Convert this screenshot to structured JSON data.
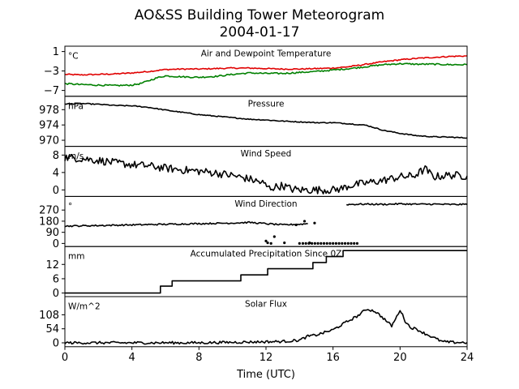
{
  "title": "AO&SS Building Tower Meteorogram",
  "subtitle": "2004-01-17",
  "xlabel": "Time (UTC)",
  "chart_data": {
    "type": "line",
    "title": "AO&SS Building Tower Meteorogram",
    "subtitle": "2004-01-17",
    "xlabel": "Time (UTC)",
    "xlim": [
      0,
      24
    ],
    "xticks": [
      0,
      4,
      8,
      12,
      16,
      20,
      24
    ],
    "panels": [
      {
        "name": "temperature",
        "label": "Air and Dewpoint Temperature",
        "units": "°C",
        "ylim": [
          -8.2,
          2.1
        ],
        "yticks": [
          1,
          -3,
          -7
        ],
        "series": [
          {
            "color": "#e00000",
            "noise": 0.12,
            "x": [
              0,
              1,
              2,
              3,
              4,
              5,
              6,
              7,
              8,
              9,
              10,
              11,
              12,
              13,
              14,
              15,
              16,
              17,
              18,
              19,
              20,
              21,
              22,
              23,
              24
            ],
            "values": [
              -3.7,
              -3.8,
              -3.7,
              -3.6,
              -3.4,
              -3.1,
              -2.7,
              -2.6,
              -2.6,
              -2.5,
              -2.4,
              -2.4,
              -2.5,
              -2.6,
              -2.6,
              -2.5,
              -2.4,
              -2.1,
              -1.6,
              -1.1,
              -0.7,
              -0.4,
              -0.2,
              0.0,
              0.1
            ]
          },
          {
            "color": "#008000",
            "noise": 0.15,
            "x": [
              0,
              1,
              2,
              3,
              4,
              4.5,
              5,
              5.5,
              6,
              7,
              8,
              9,
              10,
              11,
              12,
              13,
              14,
              15,
              16,
              17,
              18,
              19,
              20,
              21,
              22,
              23,
              24
            ],
            "values": [
              -5.6,
              -5.8,
              -5.9,
              -6.0,
              -5.9,
              -5.6,
              -5.0,
              -4.4,
              -4.0,
              -4.2,
              -4.3,
              -4.1,
              -3.7,
              -3.4,
              -3.5,
              -3.5,
              -3.3,
              -3.1,
              -2.8,
              -2.5,
              -2.1,
              -1.7,
              -1.5,
              -1.6,
              -1.6,
              -1.7,
              -1.7
            ]
          }
        ]
      },
      {
        "name": "pressure",
        "label": "Pressure",
        "units": "hPa",
        "ylim": [
          968.4,
          981.5
        ],
        "yticks": [
          978,
          974,
          970
        ],
        "series": [
          {
            "color": "#000000",
            "noise": 0.12,
            "x": [
              0,
              1,
              2,
              3,
              4,
              5,
              6,
              7,
              8,
              9,
              10,
              11,
              12,
              13,
              14,
              15,
              16,
              17,
              18,
              19,
              20,
              21,
              22,
              23,
              24
            ],
            "values": [
              979.5,
              979.6,
              979.4,
              979.1,
              979.0,
              978.6,
              977.9,
              977.3,
              976.7,
              976.3,
              975.9,
              975.5,
              975.3,
              975.0,
              974.8,
              974.6,
              974.6,
              974.3,
              973.9,
              972.6,
              971.8,
              971.2,
              970.9,
              970.8,
              970.6
            ]
          }
        ]
      },
      {
        "name": "wind-speed",
        "label": "Wind Speed",
        "units": "m/s",
        "ylim": [
          -1.5,
          10.0
        ],
        "yticks": [
          8,
          4,
          0
        ],
        "series": [
          {
            "color": "#000000",
            "noise": 0.9,
            "x": [
              0,
              1,
              2,
              3,
              4,
              5,
              6,
              7,
              8,
              9,
              10,
              11,
              11.8,
              12.2,
              13,
              13.5,
              14,
              15,
              16,
              16.5,
              17,
              18,
              19,
              20,
              20.8,
              21.5,
              22,
              23,
              24
            ],
            "values": [
              7.5,
              7.2,
              6.8,
              6.2,
              5.8,
              5.5,
              5.0,
              4.6,
              4.3,
              3.9,
              3.3,
              2.5,
              1.6,
              0.4,
              1.0,
              0.2,
              0.0,
              0.0,
              0.0,
              0.3,
              1.0,
              1.6,
              2.2,
              3.0,
              3.2,
              4.8,
              3.0,
              3.4,
              3.2
            ]
          }
        ]
      },
      {
        "name": "wind-direction",
        "label": "Wind Direction",
        "units": "°",
        "ylim": [
          -25,
          380
        ],
        "yticks": [
          270,
          180,
          90,
          0
        ],
        "series": [
          {
            "color": "#000000",
            "noise": 6,
            "x": [
              0,
              2,
              4,
              6,
              8,
              10,
              11,
              12,
              13,
              14,
              14.5
            ],
            "values": [
              140,
              145,
              150,
              155,
              160,
              165,
              170,
              160,
              150,
              155,
              160
            ]
          },
          {
            "color": "#000000",
            "noise": 6,
            "x": [
              16.8,
              18,
              19,
              20,
              21,
              22,
              23,
              24
            ],
            "values": [
              315,
              318,
              316,
              320,
              317,
              318,
              315,
              316
            ]
          }
        ]
      },
      {
        "name": "precipitation",
        "label": "Accumulated Precipitation Since 0Z",
        "units": "mm",
        "ylim": [
          -1.5,
          19.5
        ],
        "yticks": [
          12,
          6,
          0
        ],
        "step": true,
        "series": [
          {
            "color": "#000000",
            "noise": 0,
            "x": [
              0,
              5.7,
              6.4,
              10.5,
              12.1,
              14.8,
              15.6,
              16.6,
              24
            ],
            "values": [
              0,
              2.9,
              5.1,
              7.6,
              10.2,
              12.8,
              15.3,
              17.8,
              17.8
            ]
          }
        ]
      },
      {
        "name": "solar-flux",
        "label": "Solar Flux",
        "units": "W/m^2",
        "ylim": [
          -15,
          178
        ],
        "yticks": [
          108,
          54,
          0
        ],
        "series": [
          {
            "color": "#000000",
            "noise": 5,
            "x": [
              0,
              6,
              8,
              10,
              12,
              13,
              14,
              14.5,
              15,
              16,
              16.8,
              17.5,
              18,
              18.5,
              19,
              19.5,
              19.8,
              20,
              20.3,
              20.6,
              21,
              21.5,
              22,
              22.5,
              23,
              24
            ],
            "values": [
              0,
              0,
              0,
              2,
              4,
              5,
              10,
              25,
              30,
              50,
              80,
              105,
              130,
              122,
              95,
              65,
              100,
              128,
              85,
              60,
              52,
              35,
              20,
              5,
              2,
              1
            ]
          }
        ]
      }
    ]
  }
}
